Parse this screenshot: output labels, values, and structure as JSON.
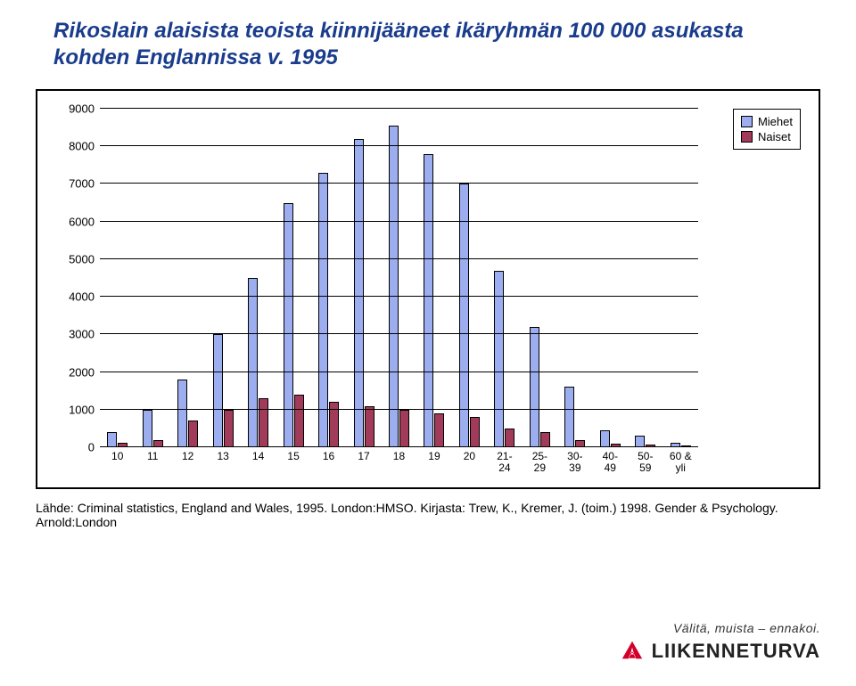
{
  "title": "Rikoslain alaisista teoista kiinnijääneet ikäryhmän 100 000 asukasta kohden Englannissa v. 1995",
  "chart": {
    "type": "bar",
    "categories": [
      "10",
      "11",
      "12",
      "13",
      "14",
      "15",
      "16",
      "17",
      "18",
      "19",
      "20",
      "21-\n24",
      "25-\n29",
      "30-\n39",
      "40-\n49",
      "50-\n59",
      "60 &\nyli"
    ],
    "series": [
      {
        "name": "Miehet",
        "color": "#9daef0",
        "values": [
          400,
          1000,
          1800,
          3000,
          4500,
          6500,
          7300,
          8200,
          8550,
          7800,
          7000,
          4700,
          3200,
          1600,
          450,
          300,
          120
        ]
      },
      {
        "name": "Naiset",
        "color": "#a23a5a",
        "values": [
          120,
          200,
          700,
          1000,
          1300,
          1400,
          1200,
          1100,
          1000,
          900,
          800,
          500,
          400,
          200,
          100,
          60,
          40
        ]
      }
    ],
    "y_min": 0,
    "y_max": 9000,
    "y_step": 1000,
    "background_color": "#ffffff",
    "grid_color": "#000000",
    "bar_border": "#000000",
    "label_fontsize": 13
  },
  "source": "Lähde: Criminal statistics, England and Wales, 1995. London:HMSO. Kirjasta: Trew, K., Kremer, J. (toim.) 1998. Gender & Psychology. Arnold:London",
  "footer": {
    "tagline": "Välitä, muista – ennakoi.",
    "brand": "LIIKENNETURVA",
    "logo_color": "#d4002a"
  }
}
